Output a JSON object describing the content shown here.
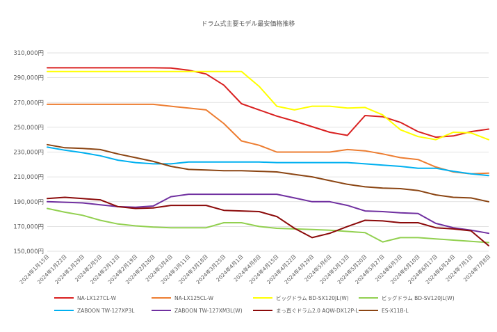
{
  "chart_data": {
    "type": "line",
    "title": "ドラム式主要モデル最安価格推移",
    "xlabel": "",
    "ylabel": "",
    "ylim": [
      150000,
      310000
    ],
    "yticks": [
      150000,
      170000,
      190000,
      210000,
      230000,
      250000,
      270000,
      290000,
      310000
    ],
    "ytick_labels": [
      "150,000円",
      "170,000円",
      "190,000円",
      "210,000円",
      "230,000円",
      "250,000円",
      "270,000円",
      "290,000円",
      "310,000円"
    ],
    "grid": true,
    "legend_position": "bottom",
    "x": [
      "2024年1月15日",
      "2024年1月22日",
      "2024年1月29日",
      "2024年2月5日",
      "2024年2月12日",
      "2024年2月19日",
      "2024年2月26日",
      "2024年3月4日",
      "2024年3月11日",
      "2024年3月18日",
      "2024年3月25日",
      "2024年4月1日",
      "2024年4月8日",
      "2024年4月15日",
      "2024年4月22日",
      "2024年4月29日",
      "2024年5月6日",
      "2024年5月13日",
      "2024年5月20日",
      "2024年5月27日",
      "2024年6月3日",
      "2024年6月10日",
      "2024年6月17日",
      "2024年6月24日",
      "2024年7月1日",
      "2024年7月8日"
    ],
    "series": [
      {
        "name": "NA-LX127CL-W",
        "color": "#d92020",
        "values": [
          298000,
          298000,
          298000,
          298000,
          298000,
          298000,
          298000,
          297800,
          296000,
          293000,
          284000,
          269000,
          264000,
          259000,
          255000,
          250500,
          246000,
          243500,
          259500,
          258500,
          254000,
          246500,
          242000,
          243000,
          246500,
          248500
        ]
      },
      {
        "name": "NA-LX125CL-W",
        "color": "#ed7d31",
        "values": [
          268500,
          268500,
          268500,
          268500,
          268500,
          268500,
          268500,
          267000,
          265500,
          264000,
          253000,
          239000,
          235500,
          230000,
          230000,
          230000,
          230000,
          232000,
          231000,
          228500,
          225500,
          224000,
          218000,
          214000,
          212500,
          213000
        ]
      },
      {
        "name": "ビッグドラム BD-SX120JL(W)",
        "color": "#ffff00",
        "values": [
          295000,
          295000,
          295000,
          295000,
          295000,
          295000,
          295000,
          295000,
          295000,
          295000,
          295000,
          295000,
          283000,
          267000,
          264000,
          267000,
          267000,
          265500,
          266000,
          260000,
          248000,
          242500,
          240000,
          246000,
          245500,
          240000
        ]
      },
      {
        "name": "ビッグドラム BD-SV120JL(W)",
        "color": "#92d050",
        "values": [
          184500,
          181500,
          179000,
          175000,
          172000,
          170500,
          169500,
          169000,
          169000,
          169000,
          173000,
          173000,
          170000,
          168500,
          168000,
          167500,
          167000,
          166000,
          165000,
          157500,
          161000,
          161000,
          160000,
          159000,
          158000,
          157000
        ]
      },
      {
        "name": "ZABOON TW-127XP3L",
        "color": "#00b0f0",
        "values": [
          234000,
          231500,
          229500,
          227000,
          223500,
          221500,
          220500,
          220500,
          222000,
          222000,
          222000,
          222000,
          222000,
          221500,
          221500,
          221500,
          221500,
          221500,
          220500,
          219500,
          218500,
          217000,
          217000,
          214500,
          212500,
          211000
        ]
      },
      {
        "name": "ZABOON TW-127XM3L(W)",
        "color": "#7030a0",
        "values": [
          190000,
          189500,
          189000,
          187500,
          186000,
          185500,
          186500,
          194000,
          196000,
          196000,
          196000,
          196000,
          196000,
          196000,
          193000,
          190000,
          190000,
          187000,
          182500,
          182000,
          181000,
          180500,
          172500,
          169000,
          167000,
          164500
        ]
      },
      {
        "name": "まっ直ぐドラム2.0 AQW-DX12P-L",
        "color": "#8b0a0a",
        "values": [
          192500,
          193500,
          192500,
          191500,
          186000,
          184500,
          185000,
          187000,
          187000,
          187000,
          183000,
          182500,
          182000,
          178000,
          168500,
          161000,
          164500,
          170000,
          175000,
          174500,
          173000,
          173000,
          169000,
          168000,
          166500,
          154500
        ]
      },
      {
        "name": "ES-X11B-L",
        "color": "#8b4513",
        "values": [
          236000,
          233500,
          233000,
          232000,
          228500,
          225500,
          222500,
          218500,
          216000,
          215500,
          215000,
          215000,
          214500,
          214000,
          212000,
          210000,
          207000,
          204000,
          202000,
          201000,
          200500,
          199000,
          195500,
          193500,
          193000,
          190000
        ]
      }
    ]
  }
}
